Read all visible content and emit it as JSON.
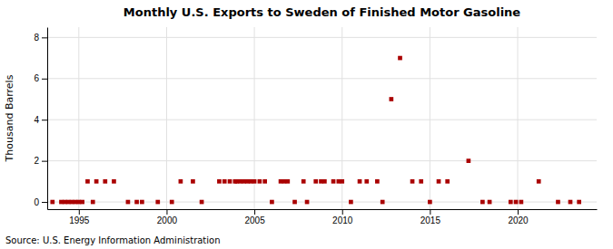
{
  "chart_data": {
    "type": "scatter",
    "title": "Monthly U.S. Exports to Sweden of Finished Motor Gasoline",
    "ylabel": "Thousand Barrels",
    "source": "Source: U.S. Energy Information Administration",
    "color": "#aa0000",
    "marker": "square",
    "grid": true,
    "xlim": [
      1993.2,
      2024.5
    ],
    "ylim": [
      -0.35,
      8.5
    ],
    "xticks": [
      1995,
      2000,
      2005,
      2010,
      2015,
      2020
    ],
    "yticks": [
      0,
      2,
      4,
      6,
      8
    ],
    "x": [
      1993.5,
      1994.0,
      1994.2,
      1994.4,
      1994.6,
      1994.8,
      1995.0,
      1995.2,
      1995.5,
      1995.8,
      1996.0,
      1996.5,
      1997.0,
      1997.8,
      1998.3,
      1998.6,
      1999.5,
      2000.3,
      2000.8,
      2001.5,
      2002.0,
      2003.0,
      2003.3,
      2003.6,
      2003.9,
      2004.0,
      2004.2,
      2004.4,
      2004.6,
      2004.8,
      2005.0,
      2005.3,
      2005.6,
      2006.0,
      2006.5,
      2006.7,
      2006.9,
      2007.3,
      2007.8,
      2008.0,
      2008.5,
      2008.8,
      2009.0,
      2009.5,
      2009.8,
      2010.0,
      2010.5,
      2011.0,
      2011.4,
      2012.0,
      2012.3,
      2012.8,
      2013.3,
      2014.0,
      2014.5,
      2015.0,
      2015.5,
      2016.0,
      2017.2,
      2018.0,
      2018.4,
      2019.6,
      2019.9,
      2020.2,
      2021.2,
      2022.3,
      2023.0,
      2023.5
    ],
    "values": [
      0,
      0,
      0,
      0,
      0,
      0,
      0,
      0,
      1,
      0,
      1,
      1,
      1,
      0,
      0,
      0,
      0,
      0,
      1,
      1,
      0,
      1,
      1,
      1,
      1,
      1,
      1,
      1,
      1,
      1,
      1,
      1,
      1,
      0,
      1,
      1,
      1,
      0,
      1,
      0,
      1,
      1,
      1,
      1,
      1,
      1,
      0,
      1,
      1,
      1,
      0,
      5,
      7,
      1,
      1,
      0,
      1,
      1,
      2,
      0,
      0,
      0,
      0,
      0,
      1,
      0,
      0,
      0
    ]
  }
}
